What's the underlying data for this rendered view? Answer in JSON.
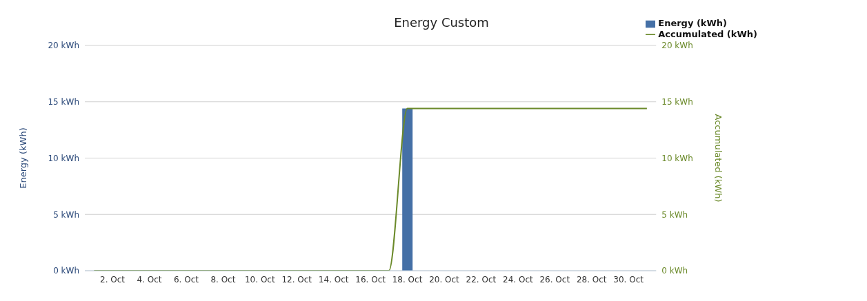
{
  "chart_data": {
    "type": "bar",
    "title": "Energy Custom",
    "ylabel": "Energy (kWh)",
    "y2label": "Accumulated (kWh)",
    "categories": [
      null,
      "2. Oct",
      null,
      "4. Oct",
      null,
      "6. Oct",
      null,
      "8. Oct",
      null,
      "10. Oct",
      null,
      "12. Oct",
      null,
      "14. Oct",
      null,
      "16. Oct",
      null,
      "18. Oct",
      null,
      "20. Oct",
      null,
      "22. Oct",
      null,
      "24. Oct",
      null,
      "26. Oct",
      null,
      "28. Oct",
      null,
      "30. Oct",
      null
    ],
    "series": [
      {
        "name": "Energy (kWh)",
        "color": "#4570a6",
        "values": [
          0,
          0,
          0,
          0,
          0,
          0,
          0,
          0,
          0,
          0,
          0,
          0,
          0,
          0,
          0,
          0,
          0,
          14.4,
          0,
          0,
          0,
          0,
          0,
          0,
          0,
          0,
          0,
          0,
          0,
          0,
          0
        ]
      },
      {
        "name": "Accumulated (kWh)",
        "type": "line",
        "axis": "y2",
        "color": "#6b8a2a",
        "values": [
          0,
          0,
          0,
          0,
          0,
          0,
          0,
          0,
          0,
          0,
          0,
          0,
          0,
          0,
          0,
          0,
          0,
          14.4,
          14.4,
          14.4,
          14.4,
          14.4,
          14.4,
          14.4,
          14.4,
          14.4,
          14.4,
          14.4,
          14.4,
          14.4,
          14.4
        ]
      }
    ],
    "ylim": [
      0,
      20
    ],
    "yticks": [
      {
        "value": 0,
        "label": "0 kWh"
      },
      {
        "value": 5,
        "label": "5 kWh"
      },
      {
        "value": 10,
        "label": "10 kWh"
      },
      {
        "value": 15,
        "label": "15 kWh"
      },
      {
        "value": 20,
        "label": "20 kWh"
      }
    ],
    "y2lim": [
      0,
      20
    ],
    "y2ticks": [
      {
        "value": 0,
        "label": "0 kWh"
      },
      {
        "value": 5,
        "label": "5 kWh"
      },
      {
        "value": 10,
        "label": "10 kWh"
      },
      {
        "value": 15,
        "label": "15 kWh"
      },
      {
        "value": 20,
        "label": "20 kWh"
      }
    ],
    "grid": "y",
    "legend": "top right",
    "marker": "none"
  }
}
